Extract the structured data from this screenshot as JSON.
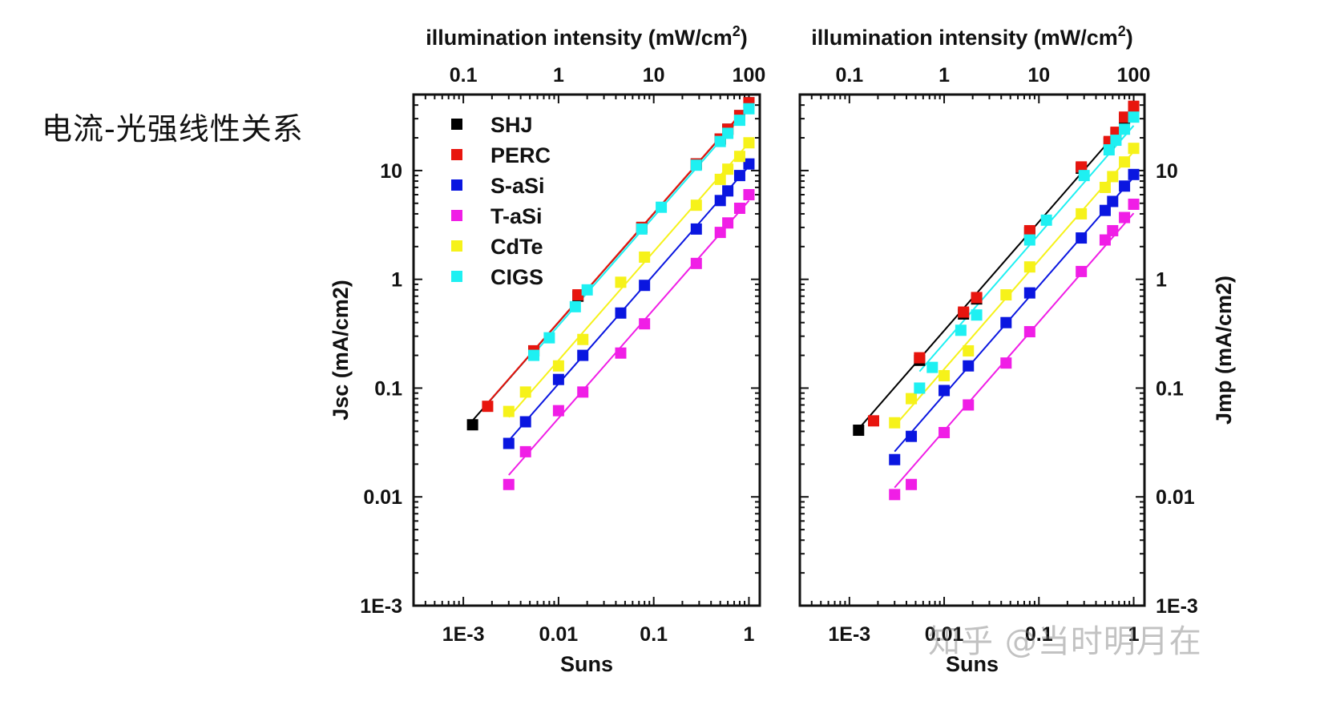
{
  "page": {
    "title": "电流-光强线性关系",
    "watermark": "知乎 @当时明月在"
  },
  "colors": {
    "SHJ": "#000000",
    "PERC": "#e8150e",
    "S-aSi": "#0a16e0",
    "T-aSi": "#f01ee6",
    "CdTe": "#f6f21a",
    "CIGS": "#1ef0f2"
  },
  "chart_data": [
    {
      "type": "scatter",
      "title": "",
      "xlabel": "Suns",
      "ylabel": "Jsc (mA/cm2)",
      "x2label": "illumination intensity (mW/cm",
      "x2label_sup": "2",
      "x2label_end": ")",
      "x_scale": "log",
      "y_scale": "log",
      "xlim": [
        0.0003,
        1.3
      ],
      "ylim": [
        0.001,
        50
      ],
      "x_ticks": [
        "1E-3",
        "0.01",
        "0.1",
        "1"
      ],
      "x2_ticks": [
        "0.1",
        "1",
        "10",
        "100"
      ],
      "y_ticks": [
        "1E-3",
        "0.01",
        "0.1",
        "1",
        "10"
      ],
      "legend_position": "top-left",
      "grid": false,
      "series": [
        {
          "name": "SHJ",
          "x": [
            0.00125,
            0.0055,
            0.016,
            0.075,
            0.28,
            0.5,
            0.6,
            0.8,
            1
          ],
          "y": [
            0.046,
            0.22,
            0.7,
            3.0,
            11.5,
            19.5,
            24,
            32,
            42
          ],
          "fit": [
            0.00125,
            1
          ]
        },
        {
          "name": "PERC",
          "x": [
            0.0018,
            0.0055,
            0.016,
            0.075,
            0.28,
            0.5,
            0.6,
            0.8,
            1
          ],
          "y": [
            0.068,
            0.22,
            0.72,
            3.0,
            11.5,
            19.5,
            24,
            32,
            42
          ],
          "fit": [
            0.0018,
            1
          ]
        },
        {
          "name": "S-aSi",
          "x": [
            0.003,
            0.0045,
            0.01,
            0.018,
            0.045,
            0.08,
            0.28,
            0.5,
            0.6,
            0.8,
            1
          ],
          "y": [
            0.031,
            0.049,
            0.12,
            0.2,
            0.49,
            0.88,
            2.9,
            5.3,
            6.5,
            9.0,
            11.5
          ],
          "fit": [
            0.003,
            1
          ]
        },
        {
          "name": "T-aSi",
          "x": [
            0.003,
            0.0045,
            0.01,
            0.018,
            0.045,
            0.08,
            0.28,
            0.5,
            0.6,
            0.8,
            1
          ],
          "y": [
            0.013,
            0.026,
            0.062,
            0.092,
            0.21,
            0.39,
            1.4,
            2.7,
            3.3,
            4.5,
            6.0
          ],
          "fit": [
            0.003,
            1
          ]
        },
        {
          "name": "CdTe",
          "x": [
            0.003,
            0.0045,
            0.01,
            0.018,
            0.045,
            0.08,
            0.28,
            0.5,
            0.6,
            0.8,
            1
          ],
          "y": [
            0.061,
            0.092,
            0.16,
            0.28,
            0.94,
            1.6,
            4.8,
            8.3,
            10.3,
            13.5,
            18
          ],
          "fit": [
            0.003,
            1
          ]
        },
        {
          "name": "CIGS",
          "x": [
            0.0055,
            0.008,
            0.015,
            0.02,
            0.075,
            0.12,
            0.28,
            0.5,
            0.6,
            0.8,
            1
          ],
          "y": [
            0.2,
            0.29,
            0.56,
            0.8,
            2.9,
            4.6,
            11.2,
            18.5,
            22,
            29,
            37
          ],
          "fit": [
            0.0055,
            1
          ]
        }
      ]
    },
    {
      "type": "scatter",
      "title": "",
      "xlabel": "Suns",
      "ylabel": "Jmp (mA/cm2)",
      "x2label": "illumination intensity (mW/cm",
      "x2label_sup": "2",
      "x2label_end": ")",
      "x_scale": "log",
      "y_scale": "log",
      "xlim": [
        0.0003,
        1.3
      ],
      "ylim": [
        0.001,
        50
      ],
      "x_ticks": [
        "1E-3",
        "0.01",
        "0.1",
        "1"
      ],
      "x2_ticks": [
        "0.1",
        "1",
        "10",
        "100"
      ],
      "y_ticks": [
        "1E-3",
        "0.01",
        "0.1",
        "1",
        "10"
      ],
      "grid": false,
      "series": [
        {
          "name": "SHJ",
          "x": [
            0.00125,
            0.0055,
            0.016,
            0.022,
            0.08,
            0.28,
            0.55,
            0.65,
            0.8,
            1
          ],
          "y": [
            0.041,
            0.18,
            0.48,
            0.66,
            2.7,
            10.5,
            18,
            22,
            30,
            38
          ],
          "fit": [
            0.00125,
            1
          ]
        },
        {
          "name": "PERC",
          "x": [
            0.0018,
            0.0055,
            0.016,
            0.022,
            0.08,
            0.28,
            0.55,
            0.65,
            0.8,
            1
          ],
          "y": [
            0.05,
            0.19,
            0.5,
            0.68,
            2.8,
            10.8,
            18.5,
            22.5,
            31,
            39
          ]
        },
        {
          "name": "S-aSi",
          "x": [
            0.003,
            0.0045,
            0.01,
            0.018,
            0.045,
            0.08,
            0.28,
            0.5,
            0.6,
            0.8,
            1
          ],
          "y": [
            0.022,
            0.036,
            0.095,
            0.16,
            0.4,
            0.75,
            2.4,
            4.3,
            5.2,
            7.2,
            9.2
          ],
          "fit": [
            0.003,
            1
          ]
        },
        {
          "name": "T-aSi",
          "x": [
            0.003,
            0.0045,
            0.01,
            0.018,
            0.045,
            0.08,
            0.28,
            0.5,
            0.6,
            0.8,
            1
          ],
          "y": [
            0.0105,
            0.013,
            0.039,
            0.07,
            0.17,
            0.33,
            1.18,
            2.3,
            2.8,
            3.7,
            4.9
          ],
          "fit": [
            0.003,
            1
          ]
        },
        {
          "name": "CdTe",
          "x": [
            0.003,
            0.0045,
            0.01,
            0.018,
            0.045,
            0.08,
            0.28,
            0.5,
            0.6,
            0.8,
            1
          ],
          "y": [
            0.048,
            0.08,
            0.13,
            0.22,
            0.72,
            1.3,
            4.0,
            7.0,
            8.8,
            12,
            16
          ],
          "fit": [
            0.003,
            1
          ]
        },
        {
          "name": "CIGS",
          "x": [
            0.0055,
            0.0075,
            0.015,
            0.022,
            0.08,
            0.12,
            0.3,
            0.55,
            0.65,
            0.8,
            1
          ],
          "y": [
            0.1,
            0.155,
            0.34,
            0.47,
            2.3,
            3.5,
            9.0,
            15.5,
            19,
            24,
            31
          ],
          "fit": [
            0.0055,
            1
          ]
        }
      ]
    }
  ]
}
